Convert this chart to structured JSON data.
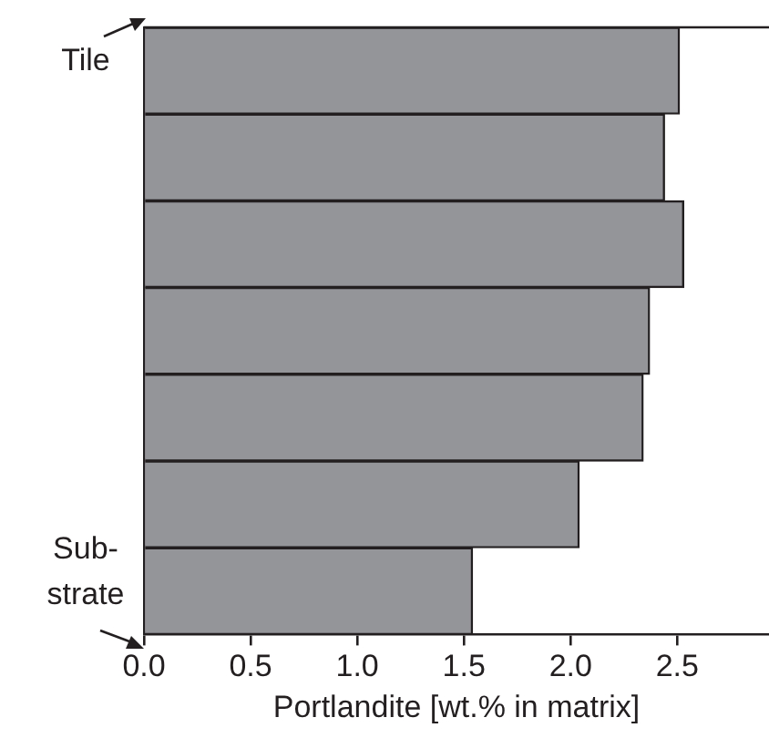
{
  "chart_data": {
    "type": "bar",
    "orientation": "horizontal",
    "xlabel": "Portlandite [wt.% in matrix]",
    "categories": [
      null,
      null,
      null,
      null,
      null,
      null,
      null
    ],
    "values": [
      2.51,
      2.44,
      2.53,
      2.37,
      2.34,
      2.04,
      1.54
    ],
    "color": "#939598",
    "xlim": [
      0,
      2.93
    ],
    "xticks": [
      {
        "value": 0,
        "label": "0.0"
      },
      0.5,
      {
        "value": 1,
        "label": "1.0"
      },
      1.5,
      {
        "value": 2,
        "label": "2.0"
      },
      2.5
    ],
    "grid": false,
    "legend": false,
    "annotations": [
      "Tile",
      "Sub-\nstrate"
    ]
  }
}
